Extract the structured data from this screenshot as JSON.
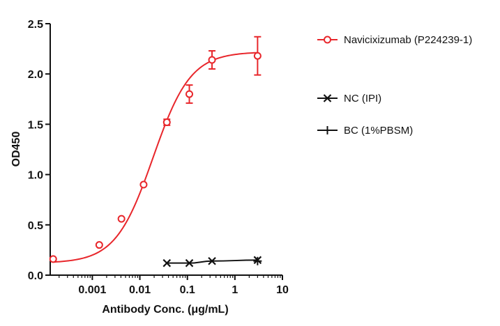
{
  "chart_data": {
    "type": "scatter",
    "xlabel": "Antibody Conc. (μg/mL)",
    "ylabel": "OD450",
    "x_scale": "log",
    "xlim": [
      0.00013,
      10
    ],
    "ylim": [
      0,
      2.5
    ],
    "x_ticks": [
      {
        "value": 0.001,
        "label": "0.001"
      },
      {
        "value": 0.01,
        "label": "0.01"
      },
      {
        "value": 0.1,
        "label": "0.1"
      },
      {
        "value": 1,
        "label": "1"
      },
      {
        "value": 10,
        "label": "10"
      }
    ],
    "y_ticks": [
      {
        "value": 0,
        "label": "0.0"
      },
      {
        "value": 0.5,
        "label": "0.5"
      },
      {
        "value": 1.0,
        "label": "1.0"
      },
      {
        "value": 1.5,
        "label": "1.5"
      },
      {
        "value": 2.0,
        "label": "2.0"
      },
      {
        "value": 2.5,
        "label": "2.5"
      }
    ],
    "grid": false,
    "legend_position": "right",
    "series": [
      {
        "name": "Navicixizumab (P224239-1)",
        "color": "#e8262b",
        "marker": "open-circle",
        "fit": "4PL",
        "fit_params": {
          "bottom": 0.12,
          "top": 2.22,
          "ec50": 0.019,
          "hill": 1.1
        },
        "points": [
          {
            "x": 0.00015,
            "y": 0.16,
            "err": 0.01
          },
          {
            "x": 0.0014,
            "y": 0.3,
            "err": 0.01
          },
          {
            "x": 0.0041,
            "y": 0.56,
            "err": 0.01
          },
          {
            "x": 0.012,
            "y": 0.9,
            "err": 0.01
          },
          {
            "x": 0.037,
            "y": 1.52,
            "err": 0.03
          },
          {
            "x": 0.11,
            "y": 1.8,
            "err": 0.09
          },
          {
            "x": 0.33,
            "y": 2.14,
            "err": 0.09
          },
          {
            "x": 3.0,
            "y": 2.18,
            "err": 0.19
          }
        ]
      },
      {
        "name": "NC (IPI)",
        "color": "#111111",
        "marker": "x",
        "fit": "smooth",
        "points": [
          {
            "x": 0.037,
            "y": 0.12
          },
          {
            "x": 0.11,
            "y": 0.12
          },
          {
            "x": 0.33,
            "y": 0.14
          },
          {
            "x": 3.0,
            "y": 0.15
          }
        ]
      },
      {
        "name": "BC (1%PBSM)",
        "color": "#111111",
        "marker": "plus",
        "fit": "none",
        "points": [
          {
            "x": 3.0,
            "y": 0.14
          }
        ]
      }
    ]
  }
}
